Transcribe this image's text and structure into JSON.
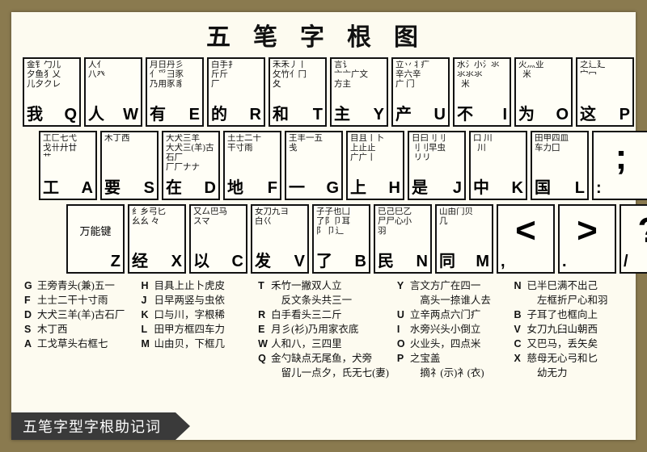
{
  "title": "五笔字根图",
  "footer": "五笔字型字根助记词",
  "rows": {
    "r1": [
      {
        "char": "我",
        "letter": "Q",
        "roots": "金钅勹儿\n夕鱼犭乂\n儿夕クレ"
      },
      {
        "char": "人",
        "letter": "W",
        "roots": "人亻\n八癶"
      },
      {
        "char": "有",
        "letter": "E",
        "roots": "月日丹彡\n亻爫彐豕\n乃用豕豸"
      },
      {
        "char": "的",
        "letter": "R",
        "roots": "白手扌\n斤斤\n厂"
      },
      {
        "char": "和",
        "letter": "T",
        "roots": "禾禾丿丨\n攵竹亻冂\n夂"
      },
      {
        "char": "主",
        "letter": "Y",
        "roots": "言讠\n亠亠广文\n方主"
      },
      {
        "char": "产",
        "letter": "U",
        "roots": "立丷丬疒\n辛六辛\n广 门"
      },
      {
        "char": "不",
        "letter": "I",
        "roots": "水氵小氵氺\n氺氺氺\n  米"
      },
      {
        "char": "为",
        "letter": "O",
        "roots": "火灬业\n  米"
      },
      {
        "char": "这",
        "letter": "P",
        "roots": "之辶廴\n宀冖\n"
      }
    ],
    "r2": [
      {
        "char": "工",
        "letter": "A",
        "roots": "工匚七弋\n戈卄廾廿\n艹"
      },
      {
        "char": "要",
        "letter": "S",
        "roots": "木丁西"
      },
      {
        "char": "在",
        "letter": "D",
        "roots": "大犬三羊\n大犬三(羊)古石厂\n厂厂ナナ"
      },
      {
        "char": "地",
        "letter": "F",
        "roots": "土士二十\n干寸雨"
      },
      {
        "char": "一",
        "letter": "G",
        "roots": "王丰一五\n戋"
      },
      {
        "char": "上",
        "letter": "H",
        "roots": "目且丨卜\n上止止\n广广丨"
      },
      {
        "char": "是",
        "letter": "J",
        "roots": "日曰刂刂\n刂刂早虫\n リリ"
      },
      {
        "char": "中",
        "letter": "K",
        "roots": "口 川\n  川"
      },
      {
        "char": "国",
        "letter": "L",
        "roots": "田甲四皿\n车力囗"
      },
      {
        "char": "",
        "letter": "",
        "roots": "",
        "symbol": ";\n:"
      }
    ],
    "r3": [
      {
        "char": "",
        "letter": "Z",
        "roots": "",
        "wanneng": "万能键"
      },
      {
        "char": "经",
        "letter": "X",
        "roots": "纟乡弓匕\n幺幺 々"
      },
      {
        "char": "以",
        "letter": "C",
        "roots": "又厶巴马\nスマ"
      },
      {
        "char": "发",
        "letter": "V",
        "roots": "女刀九ヨ\n白巜"
      },
      {
        "char": "了",
        "letter": "B",
        "roots": "子子也凵\n了阝卩耳\n阝 卩辶"
      },
      {
        "char": "民",
        "letter": "N",
        "roots": "已己巳乙\n尸尸心小\n羽"
      },
      {
        "char": "同",
        "letter": "M",
        "roots": "山由门贝\n几"
      },
      {
        "char": "",
        "letter": "",
        "roots": "",
        "symbol": "<\n,"
      },
      {
        "char": "",
        "letter": "",
        "roots": "",
        "symbol": ">\n."
      },
      {
        "char": "",
        "letter": "",
        "roots": "",
        "symbol": "?\n/"
      }
    ]
  },
  "mnemonics": [
    [
      {
        "l": "G",
        "t": "王旁青头(兼)五一"
      },
      {
        "l": "F",
        "t": "土士二干十寸雨"
      },
      {
        "l": "D",
        "t": "大犬三羊(羊)古石厂"
      },
      {
        "l": "S",
        "t": "木丁西"
      },
      {
        "l": "A",
        "t": "工戈草头右框七"
      }
    ],
    [
      {
        "l": "H",
        "t": "目具上止卜虎皮"
      },
      {
        "l": "J",
        "t": "日早两竖与虫依"
      },
      {
        "l": "K",
        "t": "口与川，字根稀"
      },
      {
        "l": "L",
        "t": "田甲方框四车力"
      },
      {
        "l": "M",
        "t": "山由贝，下框几"
      }
    ],
    [
      {
        "l": "T",
        "t": "禾竹一撇双人立"
      },
      {
        "l": "",
        "t": "　反文条头共三一"
      },
      {
        "l": "R",
        "t": "白手看头三二斤"
      },
      {
        "l": "E",
        "t": "月彡(衫)乃用家衣底"
      },
      {
        "l": "W",
        "t": "人和八，三四里"
      },
      {
        "l": "Q",
        "t": "金勺缺点无尾鱼，犬旁"
      },
      {
        "l": "",
        "t": "　留儿一点夕，氏无七(妻)"
      }
    ],
    [
      {
        "l": "Y",
        "t": "言文方广在四一"
      },
      {
        "l": "",
        "t": "　高头一捺谁人去"
      },
      {
        "l": "U",
        "t": "立辛两点六门疒"
      },
      {
        "l": "I",
        "t": "水旁兴头小倒立"
      },
      {
        "l": "O",
        "t": "火业头，四点米"
      },
      {
        "l": "P",
        "t": "之宝盖"
      },
      {
        "l": "",
        "t": "　摘礻(示)衤(衣)"
      }
    ],
    [
      {
        "l": "N",
        "t": "已半巳满不出己"
      },
      {
        "l": "",
        "t": "　左框折尸心和羽"
      },
      {
        "l": "B",
        "t": "子耳了也框向上"
      },
      {
        "l": "V",
        "t": "女刀九臼山朝西"
      },
      {
        "l": "C",
        "t": "又巴马，丢矢矣"
      },
      {
        "l": "X",
        "t": "慈母无心弓和匕"
      },
      {
        "l": "",
        "t": "　幼无力"
      }
    ]
  ]
}
